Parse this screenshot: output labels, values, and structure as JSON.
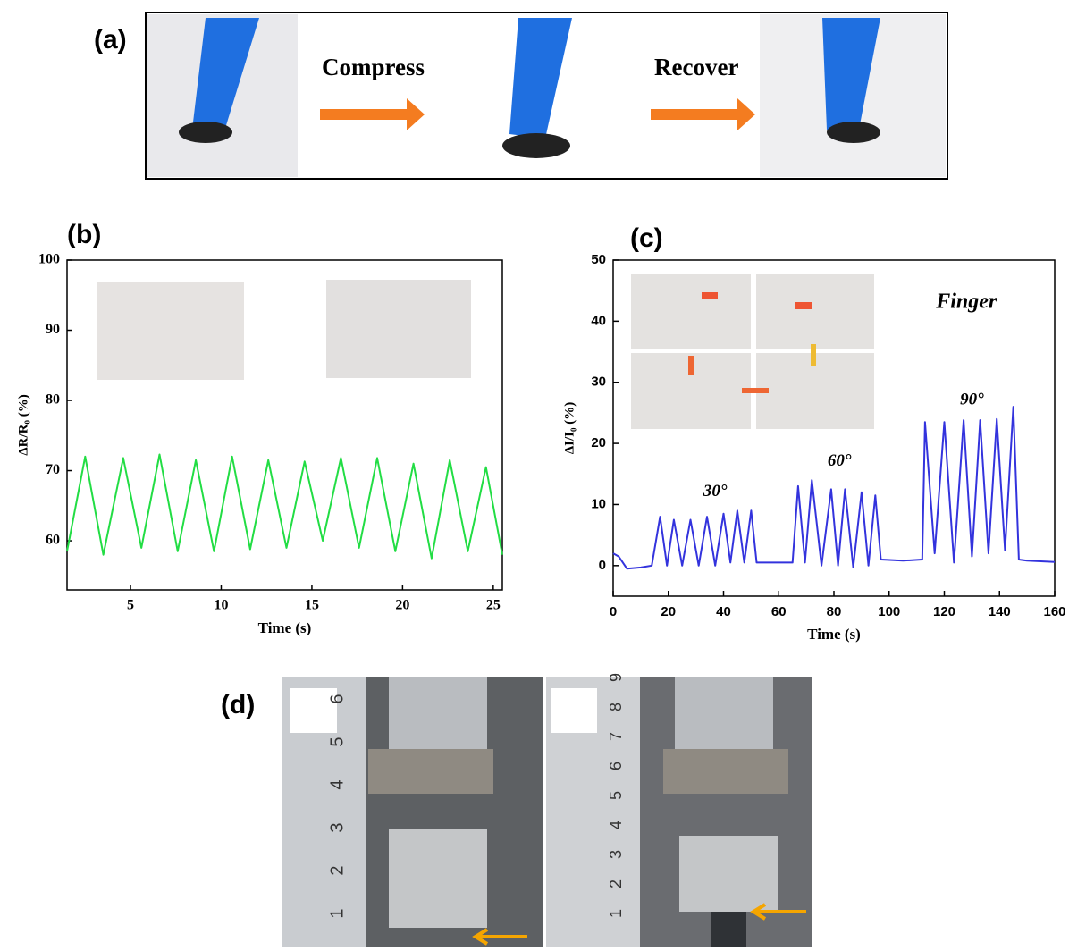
{
  "panels": {
    "a": {
      "label": "(a)",
      "steps": [
        "Compress",
        "Recover"
      ]
    },
    "b": {
      "label": "(b)"
    },
    "c": {
      "label": "(c)"
    },
    "d": {
      "label": "(d)",
      "ruler_left": [
        "1",
        "2",
        "3",
        "4",
        "5",
        "6"
      ],
      "ruler_right": [
        "1",
        "2",
        "3",
        "4",
        "5",
        "6",
        "7",
        "8",
        "9"
      ]
    }
  },
  "chart_data": [
    {
      "type": "line",
      "x_label": "Time (s)",
      "y_label": "ΔR/R₀ (%)",
      "x": [
        1.5,
        2.5,
        3.5,
        4.6,
        5.6,
        6.6,
        7.6,
        8.6,
        9.6,
        10.6,
        11.6,
        12.6,
        13.6,
        14.6,
        15.6,
        16.6,
        17.6,
        18.6,
        19.6,
        20.6,
        21.6,
        22.6,
        23.6,
        24.6,
        25.5
      ],
      "series": [
        {
          "color": "#22dd44",
          "values": [
            58.5,
            72,
            58,
            71.8,
            59,
            72.3,
            58.5,
            71.5,
            58.5,
            72,
            58.8,
            71.5,
            59,
            71.3,
            60,
            71.8,
            59,
            71.8,
            58.5,
            71,
            57.5,
            71.5,
            58.5,
            70.5,
            58
          ]
        }
      ],
      "xlim": [
        1.5,
        25.5
      ],
      "xticks": [
        5,
        10,
        15,
        20,
        25
      ],
      "ylim": [
        53,
        100
      ],
      "yticks": [
        60,
        70,
        80,
        90,
        100
      ]
    },
    {
      "type": "line",
      "x_label": "Time (s)",
      "y_label": "ΔI/I₀ (%)",
      "x": [
        0,
        2,
        5,
        10,
        14,
        17,
        19.5,
        22,
        25,
        28,
        31,
        34,
        37,
        40,
        42.5,
        45,
        47.5,
        50,
        52,
        58,
        65,
        67,
        69.5,
        72,
        75.5,
        79,
        81.5,
        84,
        87,
        90,
        92.5,
        95,
        97,
        105,
        112,
        113,
        116.5,
        120,
        123.5,
        127,
        130,
        133,
        136,
        139,
        142,
        145,
        147,
        150,
        160
      ],
      "series": [
        {
          "color": "#3333dd",
          "values": [
            2,
            1.5,
            -0.5,
            -0.3,
            0,
            8,
            0,
            7.5,
            0,
            7.5,
            0,
            8,
            0,
            8.5,
            0.5,
            9,
            0.5,
            9,
            0.5,
            0.5,
            0.5,
            13,
            0.5,
            14,
            0,
            12.5,
            0,
            12.5,
            -0.3,
            12,
            0,
            11.5,
            1,
            0.8,
            1,
            23.5,
            2,
            23.5,
            0.5,
            23.8,
            1.5,
            23.8,
            2,
            24,
            2.5,
            26,
            1,
            0.8,
            0.6
          ]
        }
      ],
      "xlim": [
        0,
        160
      ],
      "xticks": [
        0,
        20,
        40,
        60,
        80,
        100,
        120,
        140,
        160
      ],
      "ylim": [
        -5,
        50
      ],
      "yticks": [
        0,
        10,
        20,
        30,
        40,
        50
      ],
      "annotations": [
        "30°",
        "60°",
        "90°",
        "Finger"
      ]
    }
  ]
}
